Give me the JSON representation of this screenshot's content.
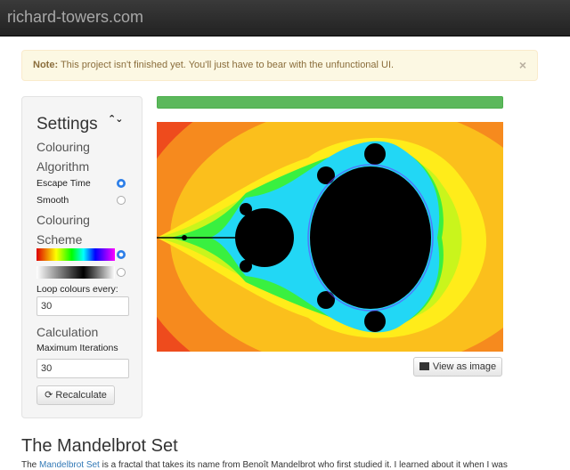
{
  "navbar": {
    "brand": "richard-towers.com"
  },
  "alert": {
    "strong": "Note:",
    "text": " This project isn't finished yet. You'll just have to bear with the unfunctional UI.",
    "close": "×"
  },
  "settings": {
    "title": "Settings",
    "toggle_icon": "chevron-up-down-icon",
    "algorithm_heading_1": "Colouring",
    "algorithm_heading_2": "Algorithm",
    "algorithms": [
      {
        "label": "Escape Time",
        "selected": true
      },
      {
        "label": "Smooth",
        "selected": false
      }
    ],
    "scheme_heading_1": "Colouring",
    "scheme_heading_2": "Scheme",
    "schemes": [
      {
        "name": "rainbow",
        "selected": true
      },
      {
        "name": "grayscale",
        "selected": false
      }
    ],
    "loop_label": "Loop colours every:",
    "loop_value": "30",
    "calc_heading": "Calculation",
    "iter_label": "Maximum Iterations",
    "iter_value": "30",
    "recalc_label": "Recalculate",
    "recalc_icon": "refresh-icon"
  },
  "progress": {
    "fraction": 1.0,
    "color": "#5cb85c"
  },
  "view_button": {
    "label": "View as image",
    "icon": "picture-icon"
  },
  "article": {
    "heading": "The Mandelbrot Set",
    "para_pre": "The ",
    "para_link": "Mandelbrot Set",
    "para_post": " is a fractal that takes its name from Benoît Mandelbrot who first studied it. I learned about it when I was"
  }
}
